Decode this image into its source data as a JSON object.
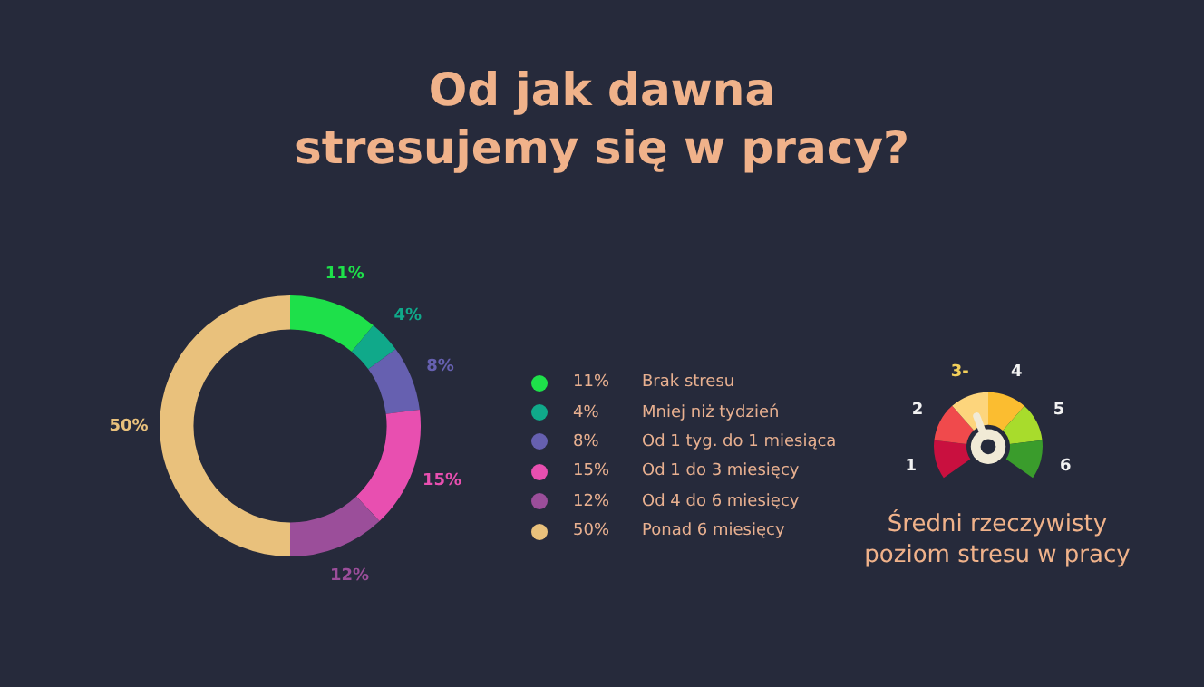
{
  "chart_data": [
    {
      "type": "donut",
      "title": "Od jak dawna stresujemy się w pracy?",
      "categories": [
        "Brak stresu",
        "Mniej niż tydzień",
        "Od 1 tyg. do 1 miesiąca",
        "Od 1 do 3 miesięcy",
        "Od 4 do 6 miesięcy",
        "Ponad 6 miesięcy"
      ],
      "values": [
        11,
        4,
        8,
        15,
        12,
        50
      ],
      "value_labels": [
        "11%",
        "4%",
        "8%",
        "15%",
        "12%",
        "50%"
      ],
      "colors": [
        "#1ee04a",
        "#10a98a",
        "#6660b0",
        "#e84fb0",
        "#9b4e9a",
        "#e9c17c"
      ],
      "legend": "right"
    },
    {
      "type": "donut",
      "title": "Średni rzeczywisty poziom stresu w pracy",
      "categories": [
        "1",
        "2",
        "3-",
        "4",
        "5",
        "6"
      ],
      "values": [
        16.7,
        16.7,
        16.6,
        16.7,
        16.6,
        16.7
      ],
      "colors": [
        "#c9103f",
        "#f04a4c",
        "#fdd57c",
        "#fbbd30",
        "#a8dc2c",
        "#3a9c2c"
      ],
      "needle": "3-",
      "legend": false
    }
  ]
}
